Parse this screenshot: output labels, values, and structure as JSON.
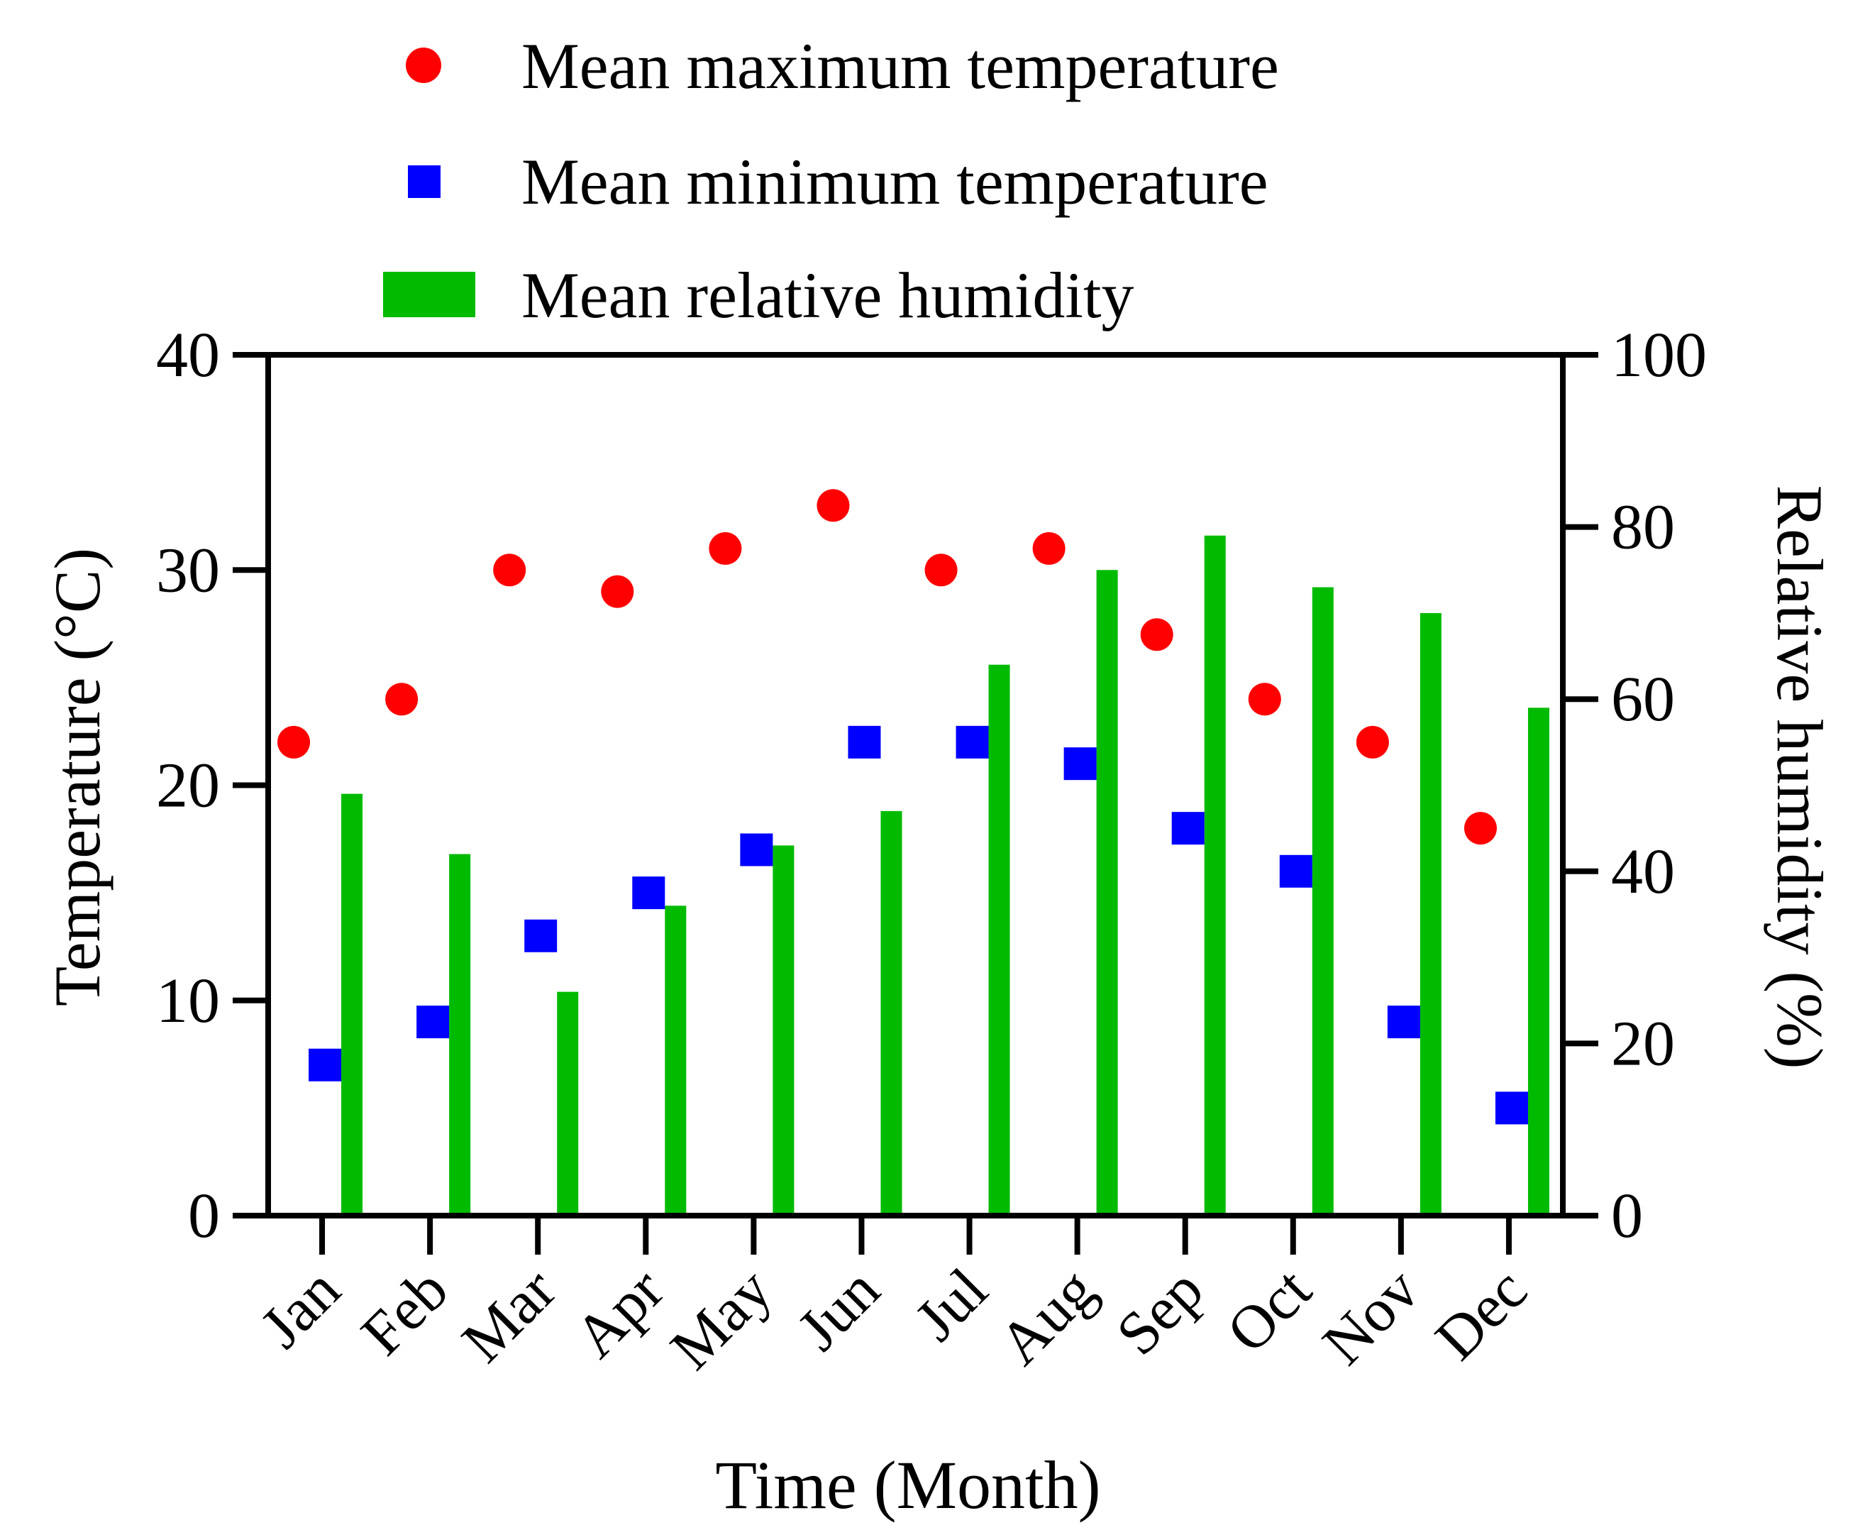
{
  "chart_data": {
    "type": "bar",
    "title": "",
    "categories": [
      "Jan",
      "Feb",
      "Mar",
      "Apr",
      "May",
      "Jun",
      "Jul",
      "Aug",
      "Sep",
      "Oct",
      "Nov",
      "Dec"
    ],
    "xlabel": "Time (Month)",
    "ylabel": "Temperature (°C)",
    "y2label": "Relative humidity (%)",
    "ylim": [
      0,
      40
    ],
    "y2lim": [
      0,
      100
    ],
    "yticks": [
      0,
      10,
      20,
      30,
      40
    ],
    "y2ticks": [
      0,
      20,
      40,
      60,
      80,
      100
    ],
    "grid": false,
    "legend_position": "top",
    "series": [
      {
        "name": "Mean maximum temperature",
        "kind": "scatter",
        "marker": "circle",
        "axis": "left",
        "color": "#ff0000",
        "values": [
          22,
          24,
          30,
          29,
          31,
          33,
          30,
          31,
          27,
          24,
          22,
          18
        ]
      },
      {
        "name": "Mean minimum temperature",
        "kind": "scatter",
        "marker": "square",
        "axis": "left",
        "color": "#0000ff",
        "values": [
          7,
          9,
          13,
          15,
          17,
          22,
          22,
          21,
          18,
          16,
          9,
          5
        ]
      },
      {
        "name": "Mean relative humidity",
        "kind": "bar",
        "axis": "right",
        "color": "#00bb00",
        "values": [
          49,
          42,
          26,
          36,
          43,
          47,
          64,
          75,
          79,
          73,
          70,
          59
        ]
      }
    ]
  }
}
